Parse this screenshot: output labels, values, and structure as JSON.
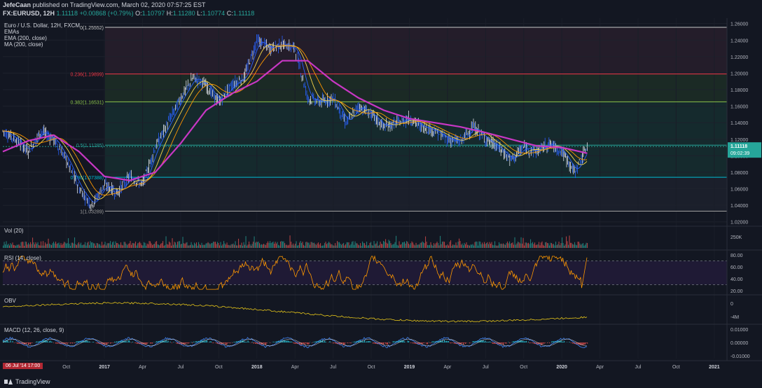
{
  "header": {
    "author": "JefeCaan",
    "published_text": "published on TradingView.com, March 02, 2020 07:57:25 EST",
    "symbol": "FX:EURUSD, 12H",
    "last": "1.11118",
    "change": "+0.00868 (+0.79%)",
    "o_label": "O:",
    "o_value": "1.10797",
    "h_label": "H:",
    "h_value": "1.11280",
    "l_label": "L:",
    "l_value": "1.10774",
    "c_label": "C:",
    "c_value": "1.11118"
  },
  "main_legend": {
    "title": "Euro / U.S. Dollar, 12H, FXCM",
    "line1": "EMAs",
    "line2": "EMA (200, close)",
    "line3": "MA (200, close)"
  },
  "price_label": {
    "value": "1.11118",
    "countdown": "09:02:39"
  },
  "pane_labels": {
    "vol": "Vol (20)",
    "rsi": "RSI (14, close)",
    "obv": "OBV",
    "macd": "MACD (12, 26, close, 9)"
  },
  "date_badge": "06 Jul '14   17:00",
  "brand": "TradingView",
  "colors": {
    "background": "#131722",
    "ema_fast": "#2962ff",
    "ema_mid": "#ff9800",
    "ema_slow": "#f7d54a",
    "ma200": "#c837c4",
    "rsi": "#ff9800",
    "obv": "#e6c619",
    "macd": "#4285f4",
    "signal": "#f0f0f0",
    "vol_up": "#26a69a",
    "vol_down": "#ef5350"
  },
  "chart_data": [
    {
      "type": "line",
      "name_text": "Euro / U.S. Dollar, 12H, FXCM",
      "x_ticks": [
        "Jul",
        "Oct",
        "2017",
        "Apr",
        "Jul",
        "Oct",
        "2018",
        "Apr",
        "Jul",
        "Oct",
        "2019",
        "Apr",
        "Jul",
        "Oct",
        "2020",
        "Apr",
        "Jul",
        "Oct",
        "2021"
      ],
      "y_ticks": [
        "1.26000",
        "1.24000",
        "1.22000",
        "1.20000",
        "1.18000",
        "1.16000",
        "1.14000",
        "1.12000",
        "1.10000",
        "1.08000",
        "1.06000",
        "1.04000",
        "1.02000"
      ],
      "ylim": [
        1.0155,
        1.2665
      ],
      "price_points": [
        {
          "x": "2016-05",
          "y": 1.13
        },
        {
          "x": "2016-06",
          "y": 1.12
        },
        {
          "x": "2016-07",
          "y": 1.105
        },
        {
          "x": "2016-08",
          "y": 1.13
        },
        {
          "x": "2016-09",
          "y": 1.12
        },
        {
          "x": "2016-10",
          "y": 1.095
        },
        {
          "x": "2016-11",
          "y": 1.06
        },
        {
          "x": "2016-12",
          "y": 1.04
        },
        {
          "x": "2017-01",
          "y": 1.065
        },
        {
          "x": "2017-02",
          "y": 1.055
        },
        {
          "x": "2017-03",
          "y": 1.075
        },
        {
          "x": "2017-04",
          "y": 1.065
        },
        {
          "x": "2017-05",
          "y": 1.11
        },
        {
          "x": "2017-06",
          "y": 1.14
        },
        {
          "x": "2017-07",
          "y": 1.17
        },
        {
          "x": "2017-08",
          "y": 1.195
        },
        {
          "x": "2017-09",
          "y": 1.185
        },
        {
          "x": "2017-10",
          "y": 1.165
        },
        {
          "x": "2017-11",
          "y": 1.185
        },
        {
          "x": "2017-12",
          "y": 1.195
        },
        {
          "x": "2018-01",
          "y": 1.24
        },
        {
          "x": "2018-02",
          "y": 1.23
        },
        {
          "x": "2018-03",
          "y": 1.235
        },
        {
          "x": "2018-04",
          "y": 1.23
        },
        {
          "x": "2018-05",
          "y": 1.17
        },
        {
          "x": "2018-06",
          "y": 1.165
        },
        {
          "x": "2018-07",
          "y": 1.17
        },
        {
          "x": "2018-08",
          "y": 1.14
        },
        {
          "x": "2018-09",
          "y": 1.16
        },
        {
          "x": "2018-10",
          "y": 1.15
        },
        {
          "x": "2018-11",
          "y": 1.135
        },
        {
          "x": "2018-12",
          "y": 1.14
        },
        {
          "x": "2019-01",
          "y": 1.145
        },
        {
          "x": "2019-02",
          "y": 1.135
        },
        {
          "x": "2019-03",
          "y": 1.13
        },
        {
          "x": "2019-04",
          "y": 1.12
        },
        {
          "x": "2019-05",
          "y": 1.117
        },
        {
          "x": "2019-06",
          "y": 1.135
        },
        {
          "x": "2019-07",
          "y": 1.12
        },
        {
          "x": "2019-08",
          "y": 1.11
        },
        {
          "x": "2019-09",
          "y": 1.095
        },
        {
          "x": "2019-10",
          "y": 1.11
        },
        {
          "x": "2019-11",
          "y": 1.105
        },
        {
          "x": "2019-12",
          "y": 1.115
        },
        {
          "x": "2020-01",
          "y": 1.105
        },
        {
          "x": "2020-02",
          "y": 1.08
        },
        {
          "x": "2020-03",
          "y": 1.1112
        }
      ],
      "ma200_points": [
        {
          "x": "2016-05",
          "y": 1.105
        },
        {
          "x": "2016-07",
          "y": 1.118
        },
        {
          "x": "2016-09",
          "y": 1.125
        },
        {
          "x": "2016-11",
          "y": 1.105
        },
        {
          "x": "2017-01",
          "y": 1.075
        },
        {
          "x": "2017-03",
          "y": 1.07
        },
        {
          "x": "2017-05",
          "y": 1.08
        },
        {
          "x": "2017-07",
          "y": 1.115
        },
        {
          "x": "2017-09",
          "y": 1.155
        },
        {
          "x": "2017-11",
          "y": 1.175
        },
        {
          "x": "2018-01",
          "y": 1.19
        },
        {
          "x": "2018-03",
          "y": 1.215
        },
        {
          "x": "2018-05",
          "y": 1.215
        },
        {
          "x": "2018-07",
          "y": 1.19
        },
        {
          "x": "2018-09",
          "y": 1.17
        },
        {
          "x": "2018-11",
          "y": 1.155
        },
        {
          "x": "2019-01",
          "y": 1.145
        },
        {
          "x": "2019-03",
          "y": 1.14
        },
        {
          "x": "2019-05",
          "y": 1.135
        },
        {
          "x": "2019-07",
          "y": 1.128
        },
        {
          "x": "2019-09",
          "y": 1.12
        },
        {
          "x": "2019-11",
          "y": 1.112
        },
        {
          "x": "2020-01",
          "y": 1.11
        },
        {
          "x": "2020-03",
          "y": 1.103
        }
      ],
      "fibonacci": [
        {
          "label": "0(1.25552)",
          "value": 1.25552,
          "color": "#c9c9c9"
        },
        {
          "label": "0.236(1.19899)",
          "value": 1.19899,
          "color": "#f23645"
        },
        {
          "label": "0.382(1.16531)",
          "value": 1.16531,
          "color": "#8bc34a"
        },
        {
          "label": "0.5(1.11285)",
          "value": 1.11285,
          "color": "#26a69a"
        },
        {
          "label": "0.786(1.07388)",
          "value": 1.07388,
          "color": "#00bcd4"
        },
        {
          "label": "1(1.03289)",
          "value": 1.03289,
          "color": "#9e9e9e"
        }
      ]
    },
    {
      "type": "bar",
      "name_text": "Vol (20)",
      "y_ticks": [
        "250K"
      ]
    },
    {
      "type": "line",
      "name_text": "RSI (14, close)",
      "y_ticks": [
        "80.00",
        "60.00",
        "40.00",
        "20.00"
      ],
      "bands": [
        70,
        30
      ]
    },
    {
      "type": "line",
      "name_text": "OBV",
      "y_ticks": [
        "0",
        "-4M"
      ]
    },
    {
      "type": "line",
      "name_text": "MACD (12, 26, close, 9)",
      "y_ticks": [
        "0.01000",
        "0.00000",
        "-0.01000"
      ]
    }
  ]
}
